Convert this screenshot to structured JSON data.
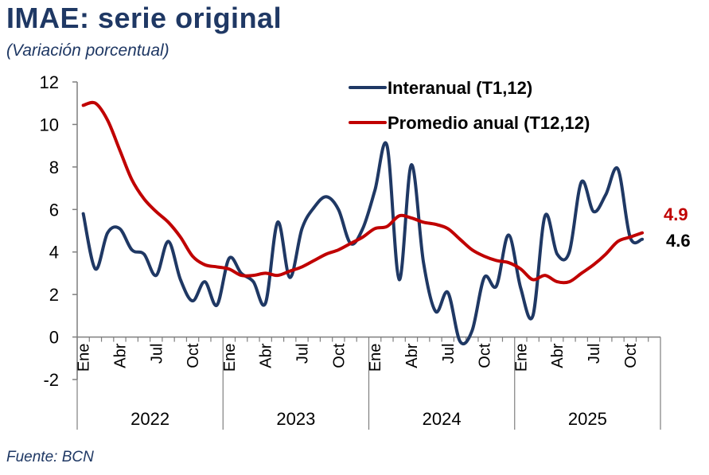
{
  "header": {
    "title": "IMAE: serie original",
    "subtitle": "(Variación porcentual)"
  },
  "footer": {
    "source": "Fuente: BCN"
  },
  "colors": {
    "interanual": "#1F3864",
    "promedio": "#C00000",
    "title": "#1F3864",
    "axis": "#7F7F7F"
  },
  "chart_data": {
    "type": "line",
    "title": "IMAE: serie original",
    "subtitle": "(Variación porcentual)",
    "ylim": [
      -2,
      12
    ],
    "yticks": [
      -2,
      0,
      2,
      4,
      6,
      8,
      10,
      12
    ],
    "grid": false,
    "legend_position": "top-right",
    "years": [
      "2022",
      "2023",
      "2024",
      "2025"
    ],
    "month_labels": [
      "Ene",
      "Abr",
      "Jul",
      "Oct"
    ],
    "x": [
      "Ene-2022",
      "Feb-2022",
      "Mar-2022",
      "Abr-2022",
      "May-2022",
      "Jun-2022",
      "Jul-2022",
      "Ago-2022",
      "Sep-2022",
      "Oct-2022",
      "Nov-2022",
      "Dic-2022",
      "Ene-2023",
      "Feb-2023",
      "Mar-2023",
      "Abr-2023",
      "May-2023",
      "Jun-2023",
      "Jul-2023",
      "Ago-2023",
      "Sep-2023",
      "Oct-2023",
      "Nov-2023",
      "Dic-2023",
      "Ene-2024",
      "Feb-2024",
      "Mar-2024",
      "Abr-2024",
      "May-2024",
      "Jun-2024",
      "Jul-2024",
      "Ago-2024",
      "Sep-2024",
      "Oct-2024",
      "Nov-2024",
      "Dic-2024",
      "Ene-2025",
      "Feb-2025",
      "Mar-2025",
      "Abr-2025",
      "May-2025",
      "Jun-2025",
      "Jul-2025",
      "Ago-2025",
      "Sep-2025",
      "Oct-2025",
      "Nov-2025"
    ],
    "series": [
      {
        "name": "Interanual (T1,12)",
        "color": "#1F3864",
        "values": [
          5.8,
          3.2,
          4.9,
          5.1,
          4.1,
          3.9,
          2.9,
          4.5,
          2.7,
          1.7,
          2.6,
          1.5,
          3.7,
          3.0,
          2.6,
          1.6,
          5.4,
          2.8,
          5.1,
          6.1,
          6.6,
          6.0,
          4.4,
          5.1,
          6.9,
          9.0,
          2.7,
          8.1,
          3.5,
          1.2,
          2.1,
          -0.2,
          0.3,
          2.8,
          2.4,
          4.8,
          2.3,
          1.0,
          5.7,
          3.9,
          4.0,
          7.3,
          5.9,
          6.7,
          7.9,
          4.7,
          4.6
        ]
      },
      {
        "name": "Promedio anual (T12,12)",
        "color": "#C00000",
        "values": [
          10.9,
          11.0,
          10.2,
          8.8,
          7.4,
          6.5,
          5.9,
          5.4,
          4.7,
          3.8,
          3.4,
          3.3,
          3.2,
          2.9,
          2.9,
          3.0,
          2.9,
          3.1,
          3.3,
          3.6,
          3.9,
          4.1,
          4.4,
          4.7,
          5.1,
          5.2,
          5.7,
          5.6,
          5.4,
          5.3,
          5.1,
          4.6,
          4.1,
          3.8,
          3.6,
          3.5,
          3.2,
          2.7,
          2.9,
          2.6,
          2.6,
          3.0,
          3.4,
          3.9,
          4.5,
          4.7,
          4.9
        ]
      }
    ],
    "end_labels": [
      {
        "series": "Promedio anual (T12,12)",
        "text": "4.9"
      },
      {
        "series": "Interanual (T1,12)",
        "text": "4.6"
      }
    ]
  }
}
